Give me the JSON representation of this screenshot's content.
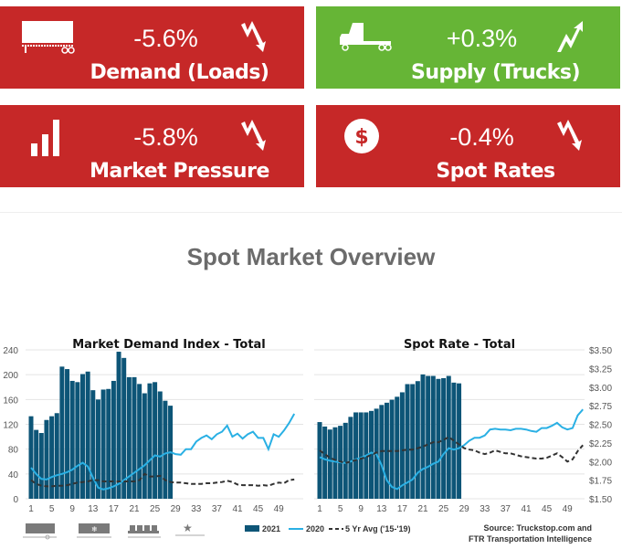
{
  "cards": [
    {
      "value": "-5.6%",
      "label": "Demand (Loads)",
      "icon": "trailer-icon",
      "trend": "trend-down-icon",
      "color": "#c62828"
    },
    {
      "value": "+0.3%",
      "label": "Supply (Trucks)",
      "icon": "truck-icon",
      "trend": "trend-up-icon",
      "color": "#66b536"
    },
    {
      "value": "-5.8%",
      "label": "Market Pressure",
      "icon": "bar-chart-icon",
      "trend": "trend-down-icon",
      "color": "#c62828"
    },
    {
      "value": "-0.4%",
      "label": "Spot Rates",
      "icon": "dollar-icon",
      "trend": "trend-down-icon",
      "color": "#c62828"
    }
  ],
  "section_title": "Spot Market Overview",
  "legend": {
    "s2021": "2021",
    "s2020": "2020",
    "avg": "5 Yr Avg ('15-'19)"
  },
  "source": {
    "line1": "Source: Truckstop.com and",
    "line2": "FTR Transportation Intelligence"
  },
  "equipment_icons": [
    "van-icon",
    "reefer-icon",
    "flatbed-icon",
    "specialized-icon"
  ],
  "colors": {
    "bar": "#0d5577",
    "line2020": "#2ab0e4",
    "avg": "#333333"
  },
  "chart_data": [
    {
      "type": "bar+line",
      "title": "Market Demand Index - Total",
      "ylim": [
        0,
        240
      ],
      "yticks": [
        "0",
        "40",
        "80",
        "120",
        "160",
        "200",
        "240"
      ],
      "xticks": [
        "1",
        "5",
        "9",
        "13",
        "17",
        "21",
        "25",
        "29",
        "33",
        "37",
        "41",
        "45",
        "49"
      ],
      "series": [
        {
          "name": "2021",
          "type": "bar",
          "values": [
            133,
            111,
            106,
            127,
            133,
            138,
            213,
            209,
            190,
            188,
            201,
            205,
            175,
            160,
            176,
            177,
            190,
            237,
            227,
            196,
            196,
            185,
            170,
            186,
            188,
            173,
            158,
            150
          ]
        },
        {
          "name": "2020",
          "type": "line",
          "values": [
            50,
            40,
            32,
            31,
            35,
            38,
            40,
            43,
            47,
            53,
            58,
            52,
            34,
            18,
            15,
            17,
            20,
            24,
            30,
            36,
            42,
            48,
            54,
            62,
            70,
            68,
            73,
            75,
            72,
            71,
            80,
            80,
            92,
            98,
            102,
            96,
            104,
            108,
            118,
            100,
            105,
            97,
            104,
            108,
            98,
            98,
            80,
            104,
            100,
            110,
            122,
            137
          ]
        },
        {
          "name": "5 Yr Avg ('15-'19)",
          "type": "dashed",
          "values": [
            30,
            24,
            21,
            20,
            20,
            21,
            21,
            22,
            24,
            26,
            27,
            28,
            30,
            30,
            28,
            28,
            28,
            28,
            28,
            28,
            28,
            30,
            40,
            36,
            36,
            37,
            30,
            27,
            26,
            26,
            25,
            24,
            24,
            24,
            25,
            25,
            26,
            27,
            29,
            27,
            23,
            22,
            22,
            22,
            21,
            22,
            21,
            24,
            26,
            25,
            30,
            31
          ]
        }
      ]
    },
    {
      "type": "bar+line",
      "title": "Spot Rate - Total",
      "ylim": [
        1.5,
        3.5
      ],
      "yticks": [
        "$1.50",
        "$1.75",
        "$2.00",
        "$2.25",
        "$2.50",
        "$2.75",
        "$3.00",
        "$3.25",
        "$3.50"
      ],
      "xticks": [
        "1",
        "5",
        "9",
        "13",
        "17",
        "21",
        "25",
        "29",
        "33",
        "37",
        "41",
        "45",
        "49"
      ],
      "series": [
        {
          "name": "2021",
          "type": "bar",
          "values": [
            2.53,
            2.47,
            2.43,
            2.46,
            2.48,
            2.52,
            2.6,
            2.66,
            2.66,
            2.66,
            2.68,
            2.71,
            2.76,
            2.79,
            2.83,
            2.87,
            2.93,
            3.04,
            3.04,
            3.08,
            3.17,
            3.15,
            3.15,
            3.11,
            3.12,
            3.15,
            3.06,
            3.05
          ]
        },
        {
          "name": "2020",
          "type": "line",
          "values": [
            2.06,
            2.03,
            2.01,
            2,
            1.99,
            1.98,
            2,
            2.03,
            2.05,
            2.08,
            2.12,
            2.1,
            1.95,
            1.75,
            1.66,
            1.63,
            1.68,
            1.72,
            1.76,
            1.85,
            1.9,
            1.93,
            1.97,
            2,
            2.1,
            2.18,
            2.16,
            2.18,
            2.22,
            2.28,
            2.32,
            2.32,
            2.35,
            2.43,
            2.44,
            2.43,
            2.43,
            2.42,
            2.44,
            2.44,
            2.43,
            2.41,
            2.4,
            2.45,
            2.45,
            2.48,
            2.52,
            2.46,
            2.43,
            2.45,
            2.62,
            2.7
          ]
        },
        {
          "name": "5 Yr Avg ('15-'19)",
          "type": "dashed",
          "values": [
            2.15,
            2.1,
            2.05,
            2.02,
            2,
            1.98,
            2,
            2.02,
            2.04,
            2.06,
            2.09,
            2.12,
            2.14,
            2.14,
            2.14,
            2.14,
            2.15,
            2.16,
            2.16,
            2.18,
            2.2,
            2.23,
            2.26,
            2.26,
            2.29,
            2.33,
            2.28,
            2.23,
            2.18,
            2.16,
            2.15,
            2.12,
            2.1,
            2.12,
            2.15,
            2.13,
            2.11,
            2.11,
            2.09,
            2.07,
            2.06,
            2.05,
            2.04,
            2.04,
            2.05,
            2.08,
            2.11,
            2.06,
            2,
            2.03,
            2.14,
            2.22
          ]
        }
      ]
    }
  ]
}
